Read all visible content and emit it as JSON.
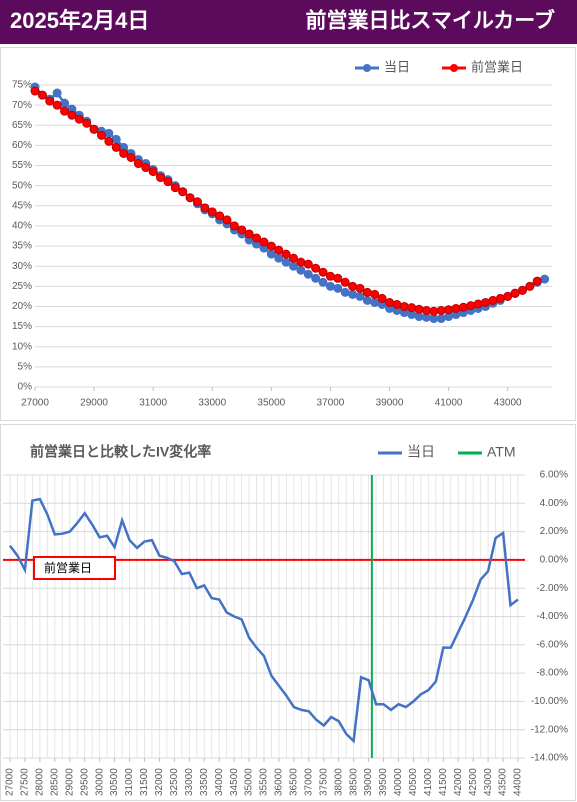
{
  "header": {
    "date": "2025年2月4日",
    "title": "前営業日比スマイルカーブ"
  },
  "chart_data": [
    {
      "type": "line",
      "markers": true,
      "grid": true,
      "legend": "top-right",
      "x": [
        27000,
        27250,
        27500,
        27750,
        28000,
        28250,
        28500,
        28750,
        29000,
        29250,
        29500,
        29750,
        30000,
        30250,
        30500,
        30750,
        31000,
        31250,
        31500,
        31750,
        32000,
        32250,
        32500,
        32750,
        33000,
        33250,
        33500,
        33750,
        34000,
        34250,
        34500,
        34750,
        35000,
        35250,
        35500,
        35750,
        36000,
        36250,
        36500,
        36750,
        37000,
        37250,
        37500,
        37750,
        38000,
        38250,
        38500,
        38750,
        39000,
        39250,
        39500,
        39750,
        40000,
        40250,
        40500,
        40750,
        41000,
        41250,
        41500,
        41750,
        42000,
        42250,
        42500,
        42750,
        43000,
        43250,
        43500,
        43750,
        44000,
        44250
      ],
      "series": [
        {
          "name": "当日",
          "color": "#4472c4",
          "values": [
            74.5,
            72.5,
            71.5,
            73,
            70.5,
            69,
            67.5,
            66,
            64,
            63.5,
            63,
            61.5,
            59.5,
            58,
            56.5,
            55.5,
            54,
            52.5,
            51.5,
            50,
            48.5,
            47,
            45.5,
            44,
            43,
            41.5,
            40.5,
            39,
            38,
            36.5,
            35.5,
            34.5,
            33,
            32,
            31,
            30,
            29,
            28,
            27,
            26,
            25,
            24.5,
            23.5,
            23,
            22.5,
            21.5,
            21,
            20.5,
            19.5,
            19,
            18.5,
            18,
            17.5,
            17.3,
            17,
            17,
            17.5,
            18,
            18.5,
            19,
            19.5,
            20,
            20.8,
            21.5,
            22.5,
            23.2,
            24,
            25,
            26,
            26.8
          ]
        },
        {
          "name": "前営業日",
          "color": "#ff0000",
          "values": [
            73.5,
            72.5,
            71,
            70,
            68.5,
            67.5,
            66.5,
            65.5,
            64,
            62.5,
            61,
            59.5,
            58,
            57,
            55.5,
            54.5,
            53.5,
            52,
            51,
            49.5,
            48.5,
            47,
            46,
            44.5,
            43.5,
            42.5,
            41.5,
            40,
            39,
            38,
            37,
            36,
            35,
            34,
            33,
            32,
            31,
            30.5,
            29.5,
            28.5,
            27.5,
            27,
            26,
            25,
            24.5,
            23.5,
            23,
            22,
            21,
            20.5,
            20,
            19.7,
            19.3,
            19,
            18.8,
            19,
            19.2,
            19.5,
            19.8,
            20.2,
            20.6,
            21,
            21.5,
            22,
            22.5,
            23.3,
            24,
            25,
            26.3,
            null
          ]
        }
      ],
      "xlim": [
        27000,
        44500
      ],
      "xticks": [
        27000,
        29000,
        31000,
        33000,
        35000,
        37000,
        39000,
        41000,
        43000
      ],
      "ylim": [
        0,
        75
      ],
      "yticks": [
        {
          "value": 0,
          "label": "0%"
        },
        {
          "value": 5,
          "label": "5%"
        },
        {
          "value": 10,
          "label": "10%"
        },
        {
          "value": 15,
          "label": "15%"
        },
        {
          "value": 20,
          "label": "20%"
        },
        {
          "value": 25,
          "label": "25%"
        },
        {
          "value": 30,
          "label": "30%"
        },
        {
          "value": 35,
          "label": "35%"
        },
        {
          "value": 40,
          "label": "40%"
        },
        {
          "value": 45,
          "label": "45%"
        },
        {
          "value": 50,
          "label": "50%"
        },
        {
          "value": 55,
          "label": "55%"
        },
        {
          "value": 60,
          "label": "60%"
        },
        {
          "value": 65,
          "label": "65%"
        },
        {
          "value": 70,
          "label": "70%"
        },
        {
          "value": 75,
          "label": "75%"
        }
      ]
    },
    {
      "type": "line",
      "markers": false,
      "grid": true,
      "legend": "top-right",
      "title": "前営業日と比較したIV変化率",
      "x": [
        27000,
        27250,
        27500,
        27750,
        28000,
        28250,
        28500,
        28750,
        29000,
        29250,
        29500,
        29750,
        30000,
        30250,
        30500,
        30750,
        31000,
        31250,
        31500,
        31750,
        32000,
        32250,
        32500,
        32750,
        33000,
        33250,
        33500,
        33750,
        34000,
        34250,
        34500,
        34750,
        35000,
        35250,
        35500,
        35750,
        36000,
        36250,
        36500,
        36750,
        37000,
        37250,
        37500,
        37750,
        38000,
        38250,
        38500,
        38750,
        39000,
        39250,
        39500,
        39750,
        40000,
        40250,
        40500,
        40750,
        41000,
        41250,
        41500,
        41750,
        42000,
        42250,
        42500,
        42750,
        43000,
        43250,
        43500,
        43750,
        44000
      ],
      "series": [
        {
          "name": "当日",
          "color": "#4472c4",
          "values": [
            1.0,
            0.3,
            -0.7,
            4.2,
            4.3,
            3.2,
            1.8,
            1.85,
            2.0,
            2.6,
            3.3,
            2.5,
            1.6,
            1.7,
            0.9,
            2.8,
            1.4,
            0.85,
            1.3,
            1.4,
            0.3,
            0.15,
            -0.1,
            -1.0,
            -0.9,
            -2.0,
            -1.8,
            -2.7,
            -2.8,
            -3.7,
            -4.0,
            -4.2,
            -5.5,
            -6.2,
            -6.8,
            -8.2,
            -8.9,
            -9.6,
            -10.4,
            -10.6,
            -10.7,
            -11.3,
            -11.7,
            -11.1,
            -11.4,
            -12.3,
            -12.8,
            -8.3,
            -8.5,
            -10.2,
            -10.2,
            -10.6,
            -10.2,
            -10.4,
            -10.0,
            -9.5,
            -9.2,
            -8.6,
            -6.2,
            -6.2,
            -5.1,
            -4.0,
            -2.8,
            -1.4,
            -0.8,
            1.55,
            1.9,
            -3.2,
            -2.8
          ]
        }
      ],
      "atm": {
        "name": "ATM",
        "color": "#00b050",
        "x": 39110
      },
      "reference_line": {
        "value": 0,
        "color": "#ff0000",
        "label": "前営業日"
      },
      "xlim": [
        27000,
        44000
      ],
      "xticks": [
        27000,
        27500,
        28000,
        28500,
        29000,
        29500,
        30000,
        30500,
        31000,
        31500,
        32000,
        32500,
        33000,
        33500,
        34000,
        34500,
        35000,
        35500,
        36000,
        36500,
        37000,
        37500,
        38000,
        38500,
        39000,
        39500,
        40000,
        40500,
        41000,
        41500,
        42000,
        42500,
        43000,
        43500,
        44000
      ],
      "ylim": [
        -14,
        6
      ],
      "yticks": [
        {
          "value": 6,
          "label": "6.00%"
        },
        {
          "value": 4,
          "label": "4.00%"
        },
        {
          "value": 2,
          "label": "2.00%"
        },
        {
          "value": 0,
          "label": "0.00%"
        },
        {
          "value": -2,
          "label": "-2.00%"
        },
        {
          "value": -4,
          "label": "-4.00%"
        },
        {
          "value": -6,
          "label": "-6.00%"
        },
        {
          "value": -8,
          "label": "-8.00%"
        },
        {
          "value": -10,
          "label": "-10.00%"
        },
        {
          "value": -12,
          "label": "-12.00%"
        },
        {
          "value": -14,
          "label": "-14.00%"
        }
      ]
    }
  ]
}
